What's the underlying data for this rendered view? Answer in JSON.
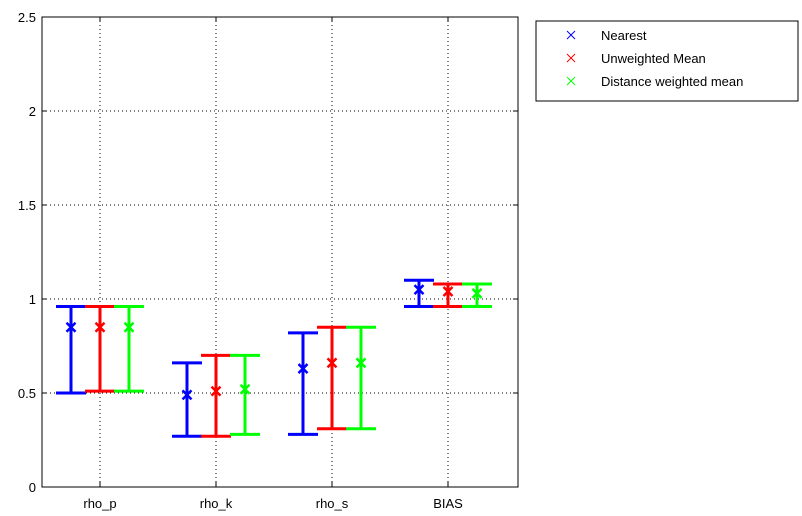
{
  "chart_data": {
    "type": "errorbar",
    "categories": [
      "rho_p",
      "rho_k",
      "rho_s",
      "BIAS"
    ],
    "ylim": [
      0,
      2.5
    ],
    "yticks": [
      0,
      0.5,
      1,
      1.5,
      2,
      2.5
    ],
    "ytick_labels": [
      "0",
      "0.5",
      "1",
      "1.5",
      "2",
      "2.5"
    ],
    "grid": true,
    "legend_position": "outside-top-right",
    "series": [
      {
        "name": "Nearest",
        "color": "#0000ff",
        "marker": "x",
        "values": [
          0.85,
          0.49,
          0.63,
          1.05
        ],
        "lower": [
          0.5,
          0.27,
          0.28,
          0.96
        ],
        "upper": [
          0.96,
          0.66,
          0.82,
          1.1
        ]
      },
      {
        "name": "Unweighted Mean",
        "color": "#ff0000",
        "marker": "x",
        "values": [
          0.85,
          0.51,
          0.66,
          1.04
        ],
        "lower": [
          0.51,
          0.27,
          0.31,
          0.96
        ],
        "upper": [
          0.96,
          0.7,
          0.85,
          1.08
        ]
      },
      {
        "name": "Distance weighted mean",
        "color": "#00ff00",
        "marker": "x",
        "values": [
          0.85,
          0.52,
          0.66,
          1.03
        ],
        "lower": [
          0.51,
          0.28,
          0.31,
          0.96
        ],
        "upper": [
          0.96,
          0.7,
          0.85,
          1.08
        ]
      }
    ]
  }
}
